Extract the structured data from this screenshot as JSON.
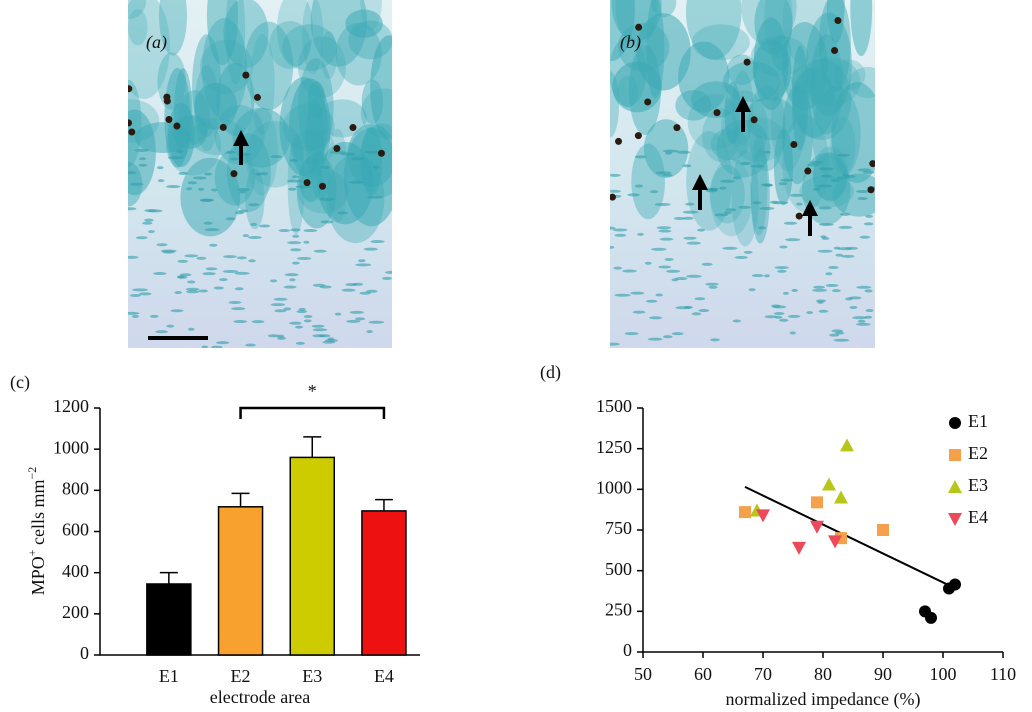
{
  "panels": {
    "a": {
      "label": "(a)"
    },
    "b": {
      "label": "(b)"
    }
  },
  "chart_data": [
    {
      "type": "bar",
      "panel_label": "(c)",
      "ylabel": [
        {
          "text": "MPO"
        },
        {
          "text": "+",
          "superscript": true
        },
        {
          "text": " cells mm"
        },
        {
          "text": "−2",
          "superscript": true
        }
      ],
      "xlabel": "electrode area",
      "categories": [
        "E1",
        "E2",
        "E3",
        "E4"
      ],
      "values": [
        345,
        720,
        960,
        700
      ],
      "errors": [
        55,
        65,
        100,
        55
      ],
      "colors": [
        "#000000",
        "#f9a12e",
        "#cccc00",
        "#ee1111"
      ],
      "ylim": [
        0,
        1200
      ],
      "yticks": [
        0,
        200,
        400,
        600,
        800,
        1000,
        1200
      ],
      "annotation": {
        "text": "*",
        "from": "E2",
        "to": "E4"
      }
    },
    {
      "type": "scatter",
      "panel_label": "(d)",
      "xlabel": "normalized impedance (%)",
      "xlim": [
        50,
        110
      ],
      "xticks": [
        50,
        60,
        70,
        80,
        90,
        100,
        110
      ],
      "ylim": [
        0,
        1500
      ],
      "yticks": [
        0,
        250,
        500,
        750,
        1000,
        1250,
        1500
      ],
      "legend": "upper right",
      "series": [
        {
          "name": "E1",
          "color": "#000000",
          "marker": "circle",
          "x": [
            97,
            98,
            101,
            102
          ],
          "y": [
            250,
            210,
            390,
            415
          ]
        },
        {
          "name": "E2",
          "color": "#f5a04a",
          "marker": "square",
          "x": [
            67,
            79,
            83,
            90
          ],
          "y": [
            860,
            920,
            700,
            750
          ]
        },
        {
          "name": "E3",
          "color": "#b8c61a",
          "marker": "triangle-up",
          "x": [
            69,
            81,
            83,
            84
          ],
          "y": [
            870,
            1030,
            950,
            1270
          ]
        },
        {
          "name": "E4",
          "color": "#ec4a5a",
          "marker": "triangle-down",
          "x": [
            70,
            76,
            79,
            82
          ],
          "y": [
            840,
            640,
            770,
            680
          ]
        }
      ],
      "trendline": {
        "x": [
          67,
          101
        ],
        "y": [
          1015,
          410
        ]
      }
    }
  ]
}
